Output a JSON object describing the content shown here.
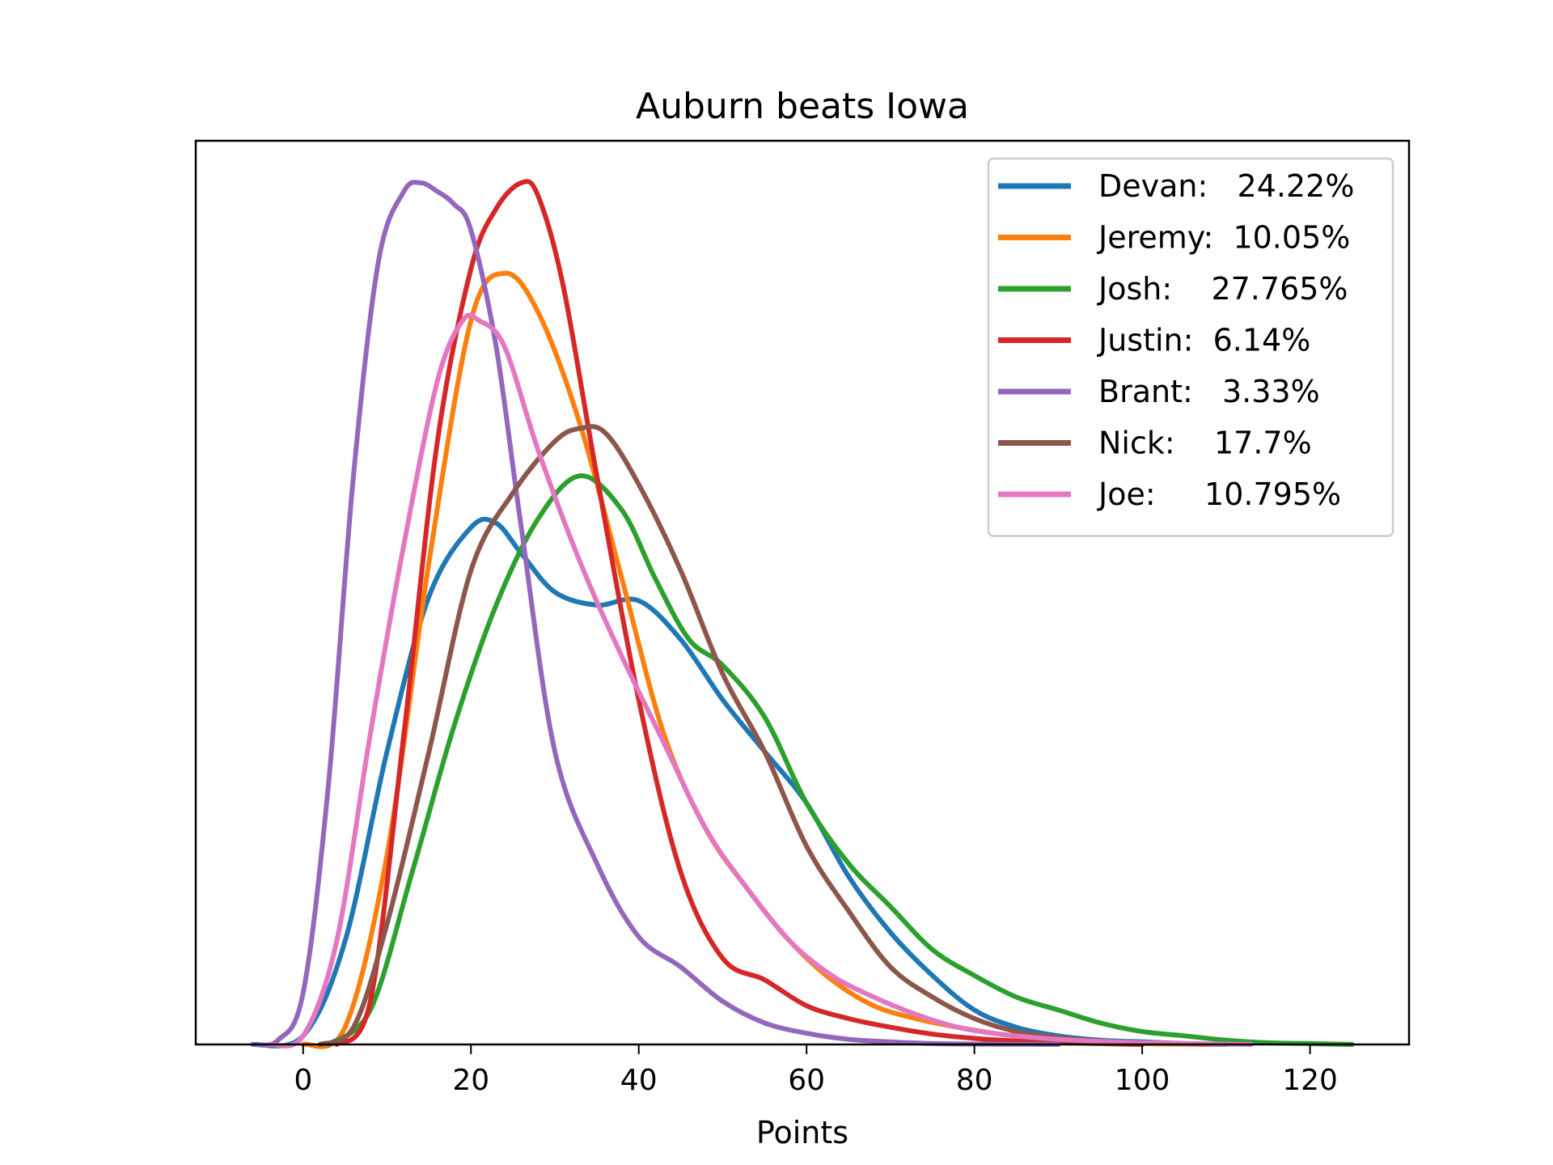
{
  "chart_data": {
    "type": "line",
    "title": "Auburn beats Iowa",
    "xlabel": "Points",
    "ylabel": "",
    "xlim": [
      -12.8,
      131.8
    ],
    "ylim": [
      0,
      1.0
    ],
    "xticks": [
      0,
      20,
      40,
      60,
      80,
      100,
      120
    ],
    "xtick_labels": [
      "0",
      "20",
      "40",
      "60",
      "80",
      "100",
      "120"
    ],
    "yticks_visible": false,
    "grid": false,
    "legend_position": "top-right",
    "series": [
      {
        "name": "Devan:   24.22%",
        "color": "#1f77b4",
        "x": [
          -6,
          0,
          5,
          10,
          15,
          20,
          23,
          26,
          30,
          35,
          40,
          45,
          50,
          55,
          60,
          65,
          70,
          75,
          80,
          85,
          90,
          95,
          100,
          105,
          110
        ],
        "y": [
          0,
          0.01,
          0.12,
          0.34,
          0.52,
          0.6,
          0.605,
          0.57,
          0.525,
          0.51,
          0.515,
          0.47,
          0.4,
          0.34,
          0.28,
          0.195,
          0.13,
          0.08,
          0.04,
          0.02,
          0.01,
          0.005,
          0.003,
          0.001,
          0
        ]
      },
      {
        "name": "Jeremy:  10.05%",
        "color": "#ff7f0e",
        "x": [
          0,
          5,
          10,
          15,
          20,
          24,
          28,
          33,
          38,
          43,
          48,
          53,
          58,
          63,
          68,
          73,
          78,
          83,
          88,
          93,
          100,
          108
        ],
        "y": [
          0,
          0.02,
          0.22,
          0.56,
          0.84,
          0.895,
          0.85,
          0.72,
          0.54,
          0.36,
          0.25,
          0.18,
          0.12,
          0.075,
          0.045,
          0.03,
          0.02,
          0.012,
          0.007,
          0.004,
          0.001,
          0
        ]
      },
      {
        "name": "Josh:    27.765%",
        "color": "#2ca02c",
        "x": [
          3,
          8,
          13,
          18,
          23,
          28,
          33,
          38,
          42,
          46,
          50,
          55,
          60,
          65,
          70,
          75,
          80,
          85,
          90,
          95,
          100,
          105,
          110,
          115,
          120,
          125
        ],
        "y": [
          0,
          0.04,
          0.2,
          0.37,
          0.51,
          0.61,
          0.66,
          0.62,
          0.54,
          0.47,
          0.44,
          0.38,
          0.28,
          0.21,
          0.16,
          0.11,
          0.08,
          0.055,
          0.04,
          0.025,
          0.015,
          0.01,
          0.005,
          0.002,
          0.001,
          0
        ]
      },
      {
        "name": "Justin:  6.14%",
        "color": "#d62728",
        "x": [
          4,
          8,
          12,
          16,
          20,
          23,
          26,
          28,
          31,
          35,
          40,
          45,
          50,
          55,
          60,
          65,
          70,
          75,
          80,
          85,
          90,
          100
        ],
        "y": [
          0,
          0.05,
          0.36,
          0.7,
          0.9,
          0.97,
          1.0,
          0.985,
          0.88,
          0.66,
          0.4,
          0.2,
          0.1,
          0.075,
          0.045,
          0.03,
          0.02,
          0.012,
          0.007,
          0.004,
          0.002,
          0
        ]
      },
      {
        "name": "Brant:   3.33%",
        "color": "#9467bd",
        "x": [
          -6,
          -3,
          0,
          3,
          6,
          9,
          12,
          14,
          16,
          18,
          20,
          23,
          26,
          30,
          35,
          40,
          45,
          50,
          55,
          60,
          65,
          70,
          75,
          80,
          90
        ],
        "y": [
          0,
          0.005,
          0.06,
          0.3,
          0.66,
          0.91,
          0.99,
          1.0,
          0.99,
          0.975,
          0.945,
          0.81,
          0.6,
          0.34,
          0.21,
          0.125,
          0.09,
          0.05,
          0.025,
          0.013,
          0.006,
          0.003,
          0.001,
          0.0005,
          0
        ]
      },
      {
        "name": "Nick:    17.7%",
        "color": "#8c564b",
        "x": [
          2,
          6,
          10,
          15,
          20,
          25,
          30,
          33,
          36,
          40,
          45,
          50,
          55,
          60,
          65,
          70,
          75,
          80,
          85,
          90,
          95,
          100,
          110
        ],
        "y": [
          0,
          0.02,
          0.14,
          0.34,
          0.55,
          0.64,
          0.7,
          0.715,
          0.71,
          0.65,
          0.55,
          0.43,
          0.34,
          0.23,
          0.155,
          0.09,
          0.055,
          0.03,
          0.015,
          0.008,
          0.004,
          0.002,
          0
        ]
      },
      {
        "name": "Joe:     10.795%",
        "color": "#e377c2",
        "x": [
          -4,
          0,
          4,
          8,
          12,
          16,
          19,
          21,
          24,
          28,
          33,
          38,
          43,
          48,
          53,
          58,
          63,
          68,
          73,
          78,
          83,
          90,
          100,
          113
        ],
        "y": [
          0,
          0.01,
          0.12,
          0.36,
          0.58,
          0.77,
          0.84,
          0.84,
          0.81,
          0.69,
          0.56,
          0.45,
          0.35,
          0.25,
          0.18,
          0.12,
          0.08,
          0.055,
          0.035,
          0.02,
          0.012,
          0.006,
          0.002,
          0
        ]
      }
    ]
  }
}
